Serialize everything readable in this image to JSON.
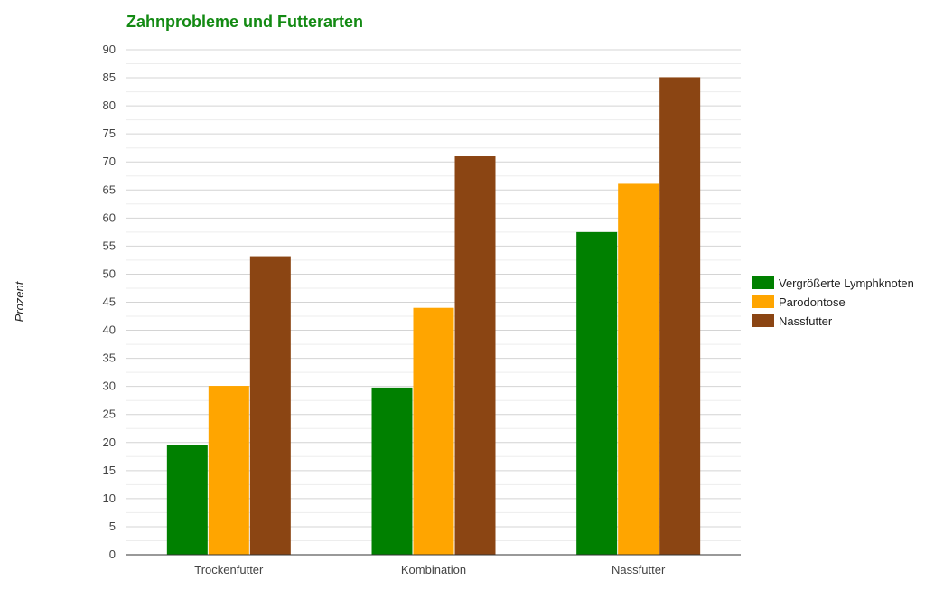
{
  "chart_data": {
    "type": "bar",
    "title": "Zahnprobleme und Futterarten",
    "title_color": "#138a13",
    "xlabel": "",
    "ylabel": "Prozent",
    "categories": [
      "Trockenfutter",
      "Kombination",
      "Nassfutter"
    ],
    "series": [
      {
        "name": "Vergrößerte Lymphknoten",
        "color": "#008000",
        "values": [
          19.6,
          29.8,
          57.5
        ]
      },
      {
        "name": "Parodontose",
        "color": "#ffa500",
        "values": [
          30.1,
          44.0,
          66.1
        ]
      },
      {
        "name": "Nassfutter",
        "color": "#8b4513",
        "values": [
          53.2,
          71.0,
          85.1
        ]
      }
    ],
    "ylim": [
      0,
      90
    ],
    "yticks": [
      0,
      5,
      10,
      15,
      20,
      25,
      30,
      35,
      40,
      45,
      50,
      55,
      60,
      65,
      70,
      75,
      80,
      85,
      90
    ],
    "grid": true,
    "legend_position": "right"
  }
}
